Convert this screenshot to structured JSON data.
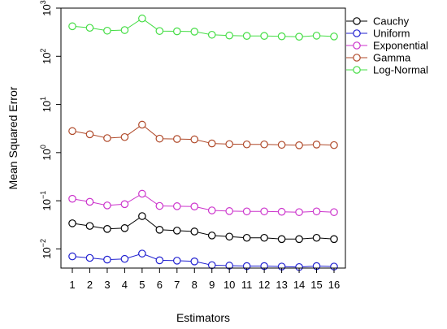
{
  "chart_data": {
    "type": "line",
    "xlabel": "Estimators",
    "ylabel": "Mean Squared Error",
    "y_scale": "log10",
    "ylim": [
      0.004,
      1000
    ],
    "y_ticks": [
      {
        "value": 0.01,
        "base": "10",
        "exp": "−2"
      },
      {
        "value": 0.1,
        "base": "10",
        "exp": "−1"
      },
      {
        "value": 1,
        "base": "10",
        "exp": "0"
      },
      {
        "value": 10,
        "base": "10",
        "exp": "1"
      },
      {
        "value": 100,
        "base": "10",
        "exp": "2"
      },
      {
        "value": 1000,
        "base": "10",
        "exp": "3"
      }
    ],
    "x": [
      "1",
      "2",
      "3",
      "4",
      "5",
      "6",
      "7",
      "8",
      "9",
      "10",
      "11",
      "12",
      "13",
      "14",
      "15",
      "16"
    ],
    "legend_position": "top-right",
    "series": [
      {
        "name": "Cauchy",
        "color": "#000000",
        "values": [
          0.034,
          0.03,
          0.026,
          0.027,
          0.048,
          0.025,
          0.024,
          0.023,
          0.019,
          0.018,
          0.017,
          0.017,
          0.016,
          0.016,
          0.017,
          0.016
        ]
      },
      {
        "name": "Uniform",
        "color": "#2020d0",
        "values": [
          0.007,
          0.0065,
          0.006,
          0.0062,
          0.008,
          0.0058,
          0.0057,
          0.0055,
          0.0046,
          0.0045,
          0.0044,
          0.0044,
          0.0043,
          0.0042,
          0.0044,
          0.0043
        ]
      },
      {
        "name": "Exponential",
        "color": "#cc33cc",
        "values": [
          0.11,
          0.095,
          0.08,
          0.085,
          0.14,
          0.078,
          0.077,
          0.076,
          0.063,
          0.061,
          0.06,
          0.06,
          0.059,
          0.058,
          0.06,
          0.058
        ]
      },
      {
        "name": "Gamma",
        "color": "#b04a2a",
        "values": [
          2.8,
          2.4,
          2.0,
          2.1,
          3.8,
          1.95,
          1.92,
          1.88,
          1.55,
          1.5,
          1.48,
          1.48,
          1.45,
          1.42,
          1.47,
          1.43
        ]
      },
      {
        "name": "Log-Normal",
        "color": "#44dd44",
        "values": [
          420,
          390,
          340,
          350,
          610,
          335,
          330,
          325,
          280,
          270,
          265,
          265,
          260,
          255,
          268,
          258
        ]
      }
    ]
  }
}
